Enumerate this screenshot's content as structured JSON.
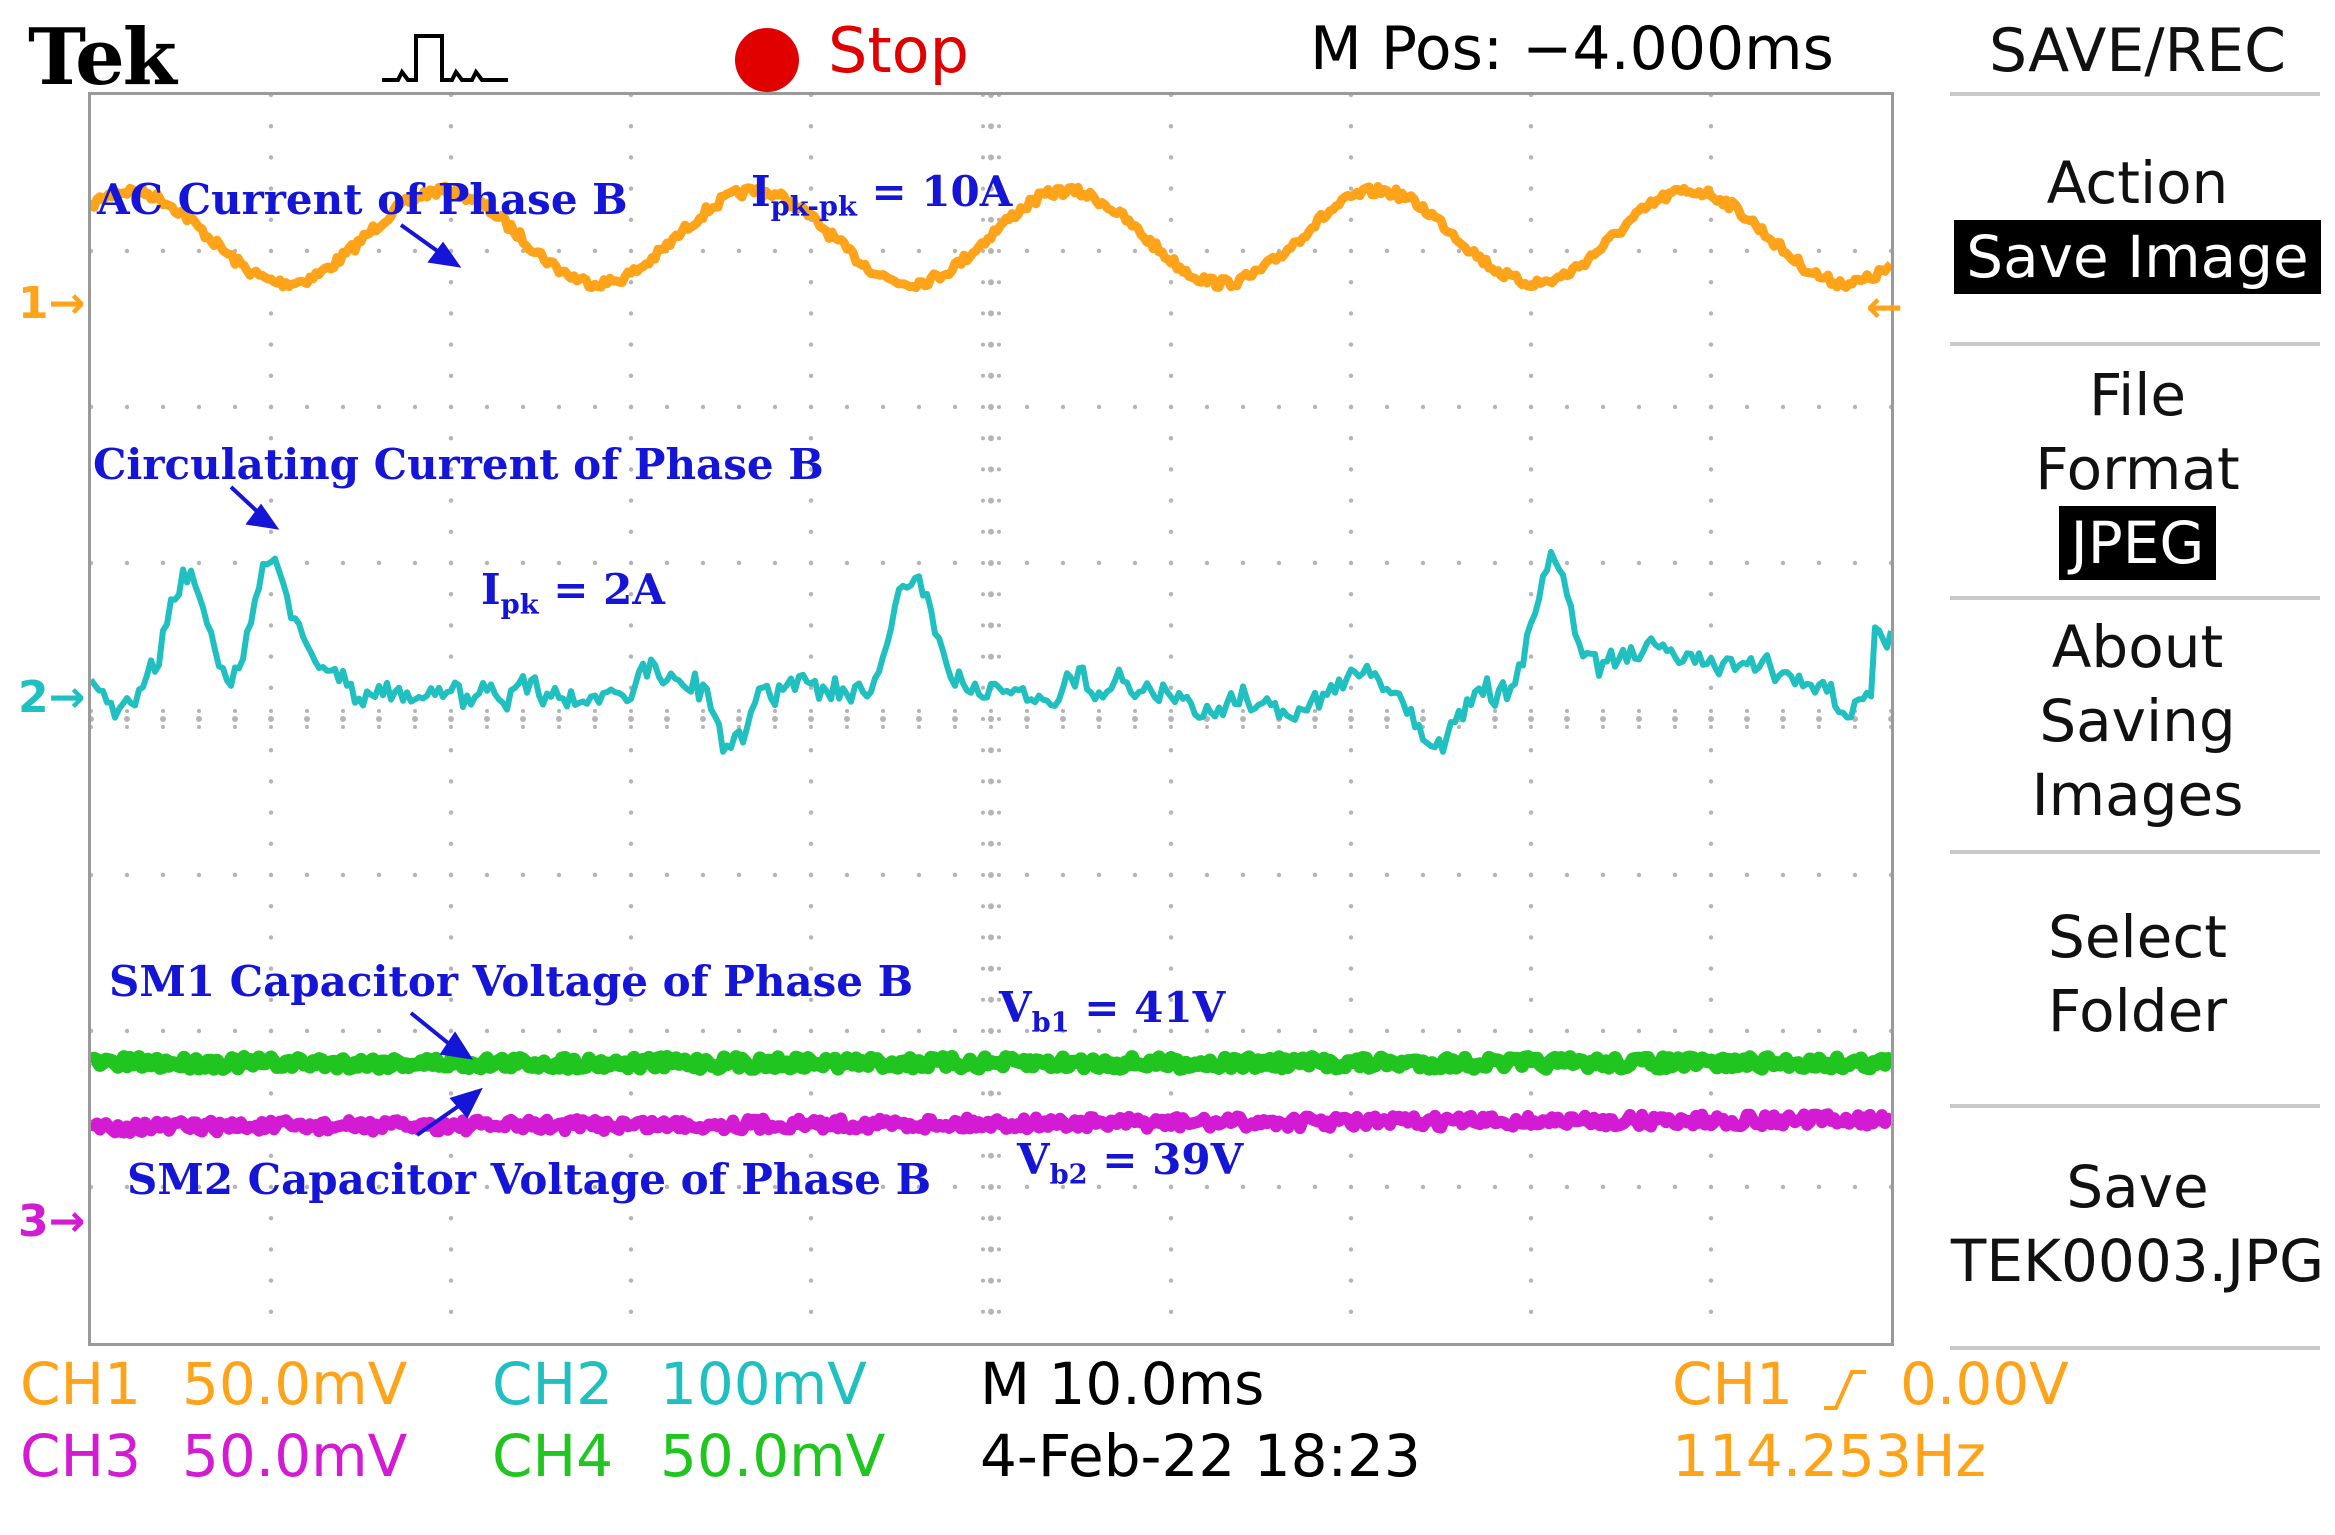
{
  "header": {
    "brand": "Tek",
    "run_state": "Stop",
    "m_pos": "M Pos: −4.000ms"
  },
  "icons": {
    "acquire": "pulse-waveform-icon",
    "run_state": "stop-dot-icon",
    "trigger_position": "trigger-position-arrow-icon"
  },
  "colors": {
    "ch1": "#ffa31a",
    "ch2": "#20bfc0",
    "ch3": "#d21bd2",
    "ch4": "#20c520",
    "annotation": "#1515d8",
    "stop": "#e00000"
  },
  "screen": {
    "markers": {
      "ch1": "1→",
      "ch2": "2→",
      "ch34": "3→"
    },
    "annotations": {
      "ac_current": "AC Current of Phase B",
      "ipkpk_main": "I",
      "ipkpk_sub": "pk-pk",
      "ipkpk_value": " = 10A",
      "circ_current": "Circulating Current of Phase B",
      "ipk_main": "I",
      "ipk_sub": "pk",
      "ipk_value": " = 2A",
      "sm1": "SM1 Capacitor Voltage of Phase B",
      "vb1_main": "V",
      "vb1_sub": "b1",
      "vb1_value": " = 41V",
      "sm2": "SM2 Capacitor Voltage of Phase B",
      "vb2_main": "V",
      "vb2_sub": "b2",
      "vb2_value": " = 39V"
    }
  },
  "menu": {
    "title": "SAVE/REC",
    "action_label": "Action",
    "action_value": "Save Image",
    "file_format_line1": "File",
    "file_format_line2": "Format",
    "file_format_value": "JPEG",
    "about_line1": "About",
    "about_line2": "Saving",
    "about_line3": "Images",
    "select_line1": "Select",
    "select_line2": "Folder",
    "save_line1": "Save",
    "save_line2": "TEK0003.JPG"
  },
  "status": {
    "ch1_label": "CH1",
    "ch1_scale": "50.0mV",
    "ch2_label": "CH2",
    "ch2_scale": "100mV",
    "timebase": "M 10.0ms",
    "trigger_src": "CH1",
    "trigger_level": "0.00V",
    "ch3_label": "CH3",
    "ch3_scale": "50.0mV",
    "ch4_label": "CH4",
    "ch4_scale": "50.0mV",
    "datetime": "4-Feb-22 18:23",
    "frequency": "114.253Hz"
  }
}
